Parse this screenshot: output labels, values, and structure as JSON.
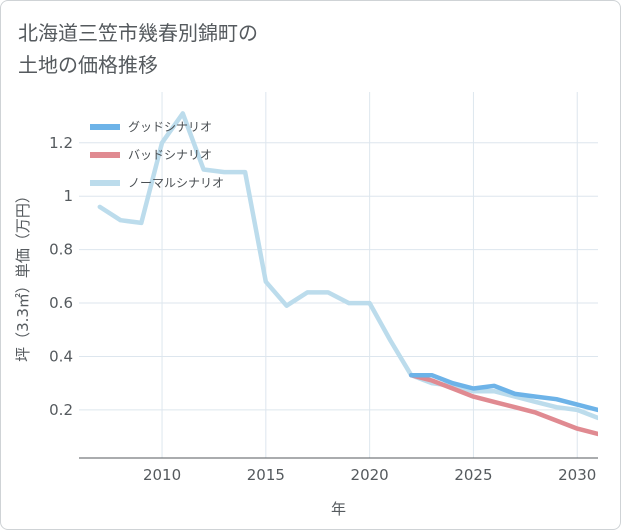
{
  "title": "北海道三笠市幾春別錦町の\n土地の価格推移",
  "chart_data": {
    "type": "line",
    "xlabel": "年",
    "ylabel": "坪（3.3㎡）単価（万円）",
    "xlim": [
      2006,
      2031
    ],
    "ylim": [
      0.02,
      1.39
    ],
    "x_ticks": [
      2010,
      2015,
      2020,
      2025,
      2030
    ],
    "y_ticks": [
      0.2,
      0.4,
      0.6,
      0.8,
      1,
      1.2
    ],
    "x_tick_labels": [
      "2010",
      "2015",
      "2020",
      "2025",
      "2030"
    ],
    "y_tick_labels": [
      "0.2",
      "0.4",
      "0.6",
      "0.8",
      "1",
      "1.2"
    ],
    "grid": true,
    "legend_position": "top-left",
    "series": [
      {
        "name": "グッドシナリオ",
        "color": "#6db3e8",
        "x": [
          2022,
          2023,
          2024,
          2025,
          2026,
          2027,
          2028,
          2029,
          2030,
          2031
        ],
        "y": [
          0.33,
          0.33,
          0.3,
          0.28,
          0.29,
          0.26,
          0.25,
          0.24,
          0.22,
          0.2
        ]
      },
      {
        "name": "バッドシナリオ",
        "color": "#e08a91",
        "x": [
          2022,
          2023,
          2024,
          2025,
          2026,
          2027,
          2028,
          2029,
          2030,
          2031
        ],
        "y": [
          0.33,
          0.31,
          0.28,
          0.25,
          0.23,
          0.21,
          0.19,
          0.16,
          0.13,
          0.11
        ]
      },
      {
        "name": "ノーマルシナリオ",
        "color": "#bcdcec",
        "x": [
          2007,
          2008,
          2009,
          2010,
          2011,
          2012,
          2013,
          2014,
          2015,
          2016,
          2017,
          2018,
          2019,
          2020,
          2021,
          2022,
          2023,
          2024,
          2025,
          2026,
          2027,
          2028,
          2029,
          2030,
          2031
        ],
        "y": [
          0.96,
          0.91,
          0.9,
          1.2,
          1.31,
          1.1,
          1.09,
          1.09,
          0.68,
          0.59,
          0.64,
          0.64,
          0.6,
          0.6,
          0.46,
          0.33,
          0.3,
          0.29,
          0.27,
          0.27,
          0.25,
          0.23,
          0.21,
          0.2,
          0.17
        ]
      }
    ]
  }
}
